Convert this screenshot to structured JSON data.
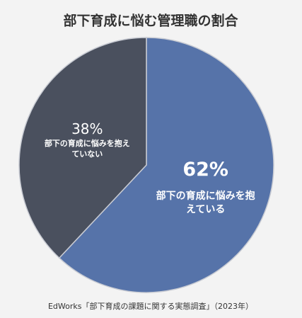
{
  "chart_data": {
    "type": "pie",
    "title": "部下育成に悩む管理職の割合",
    "categories": [
      "部下の育成に悩みを抱えている",
      "部下の育成に悩みを抱えていない"
    ],
    "values": [
      62,
      38
    ],
    "value_labels": [
      "62%",
      "38%"
    ],
    "colors": [
      "#5673a9",
      "#4a505e"
    ],
    "source": "EdWorks「部下育成の課題に関する実態調査」（2023年）"
  }
}
